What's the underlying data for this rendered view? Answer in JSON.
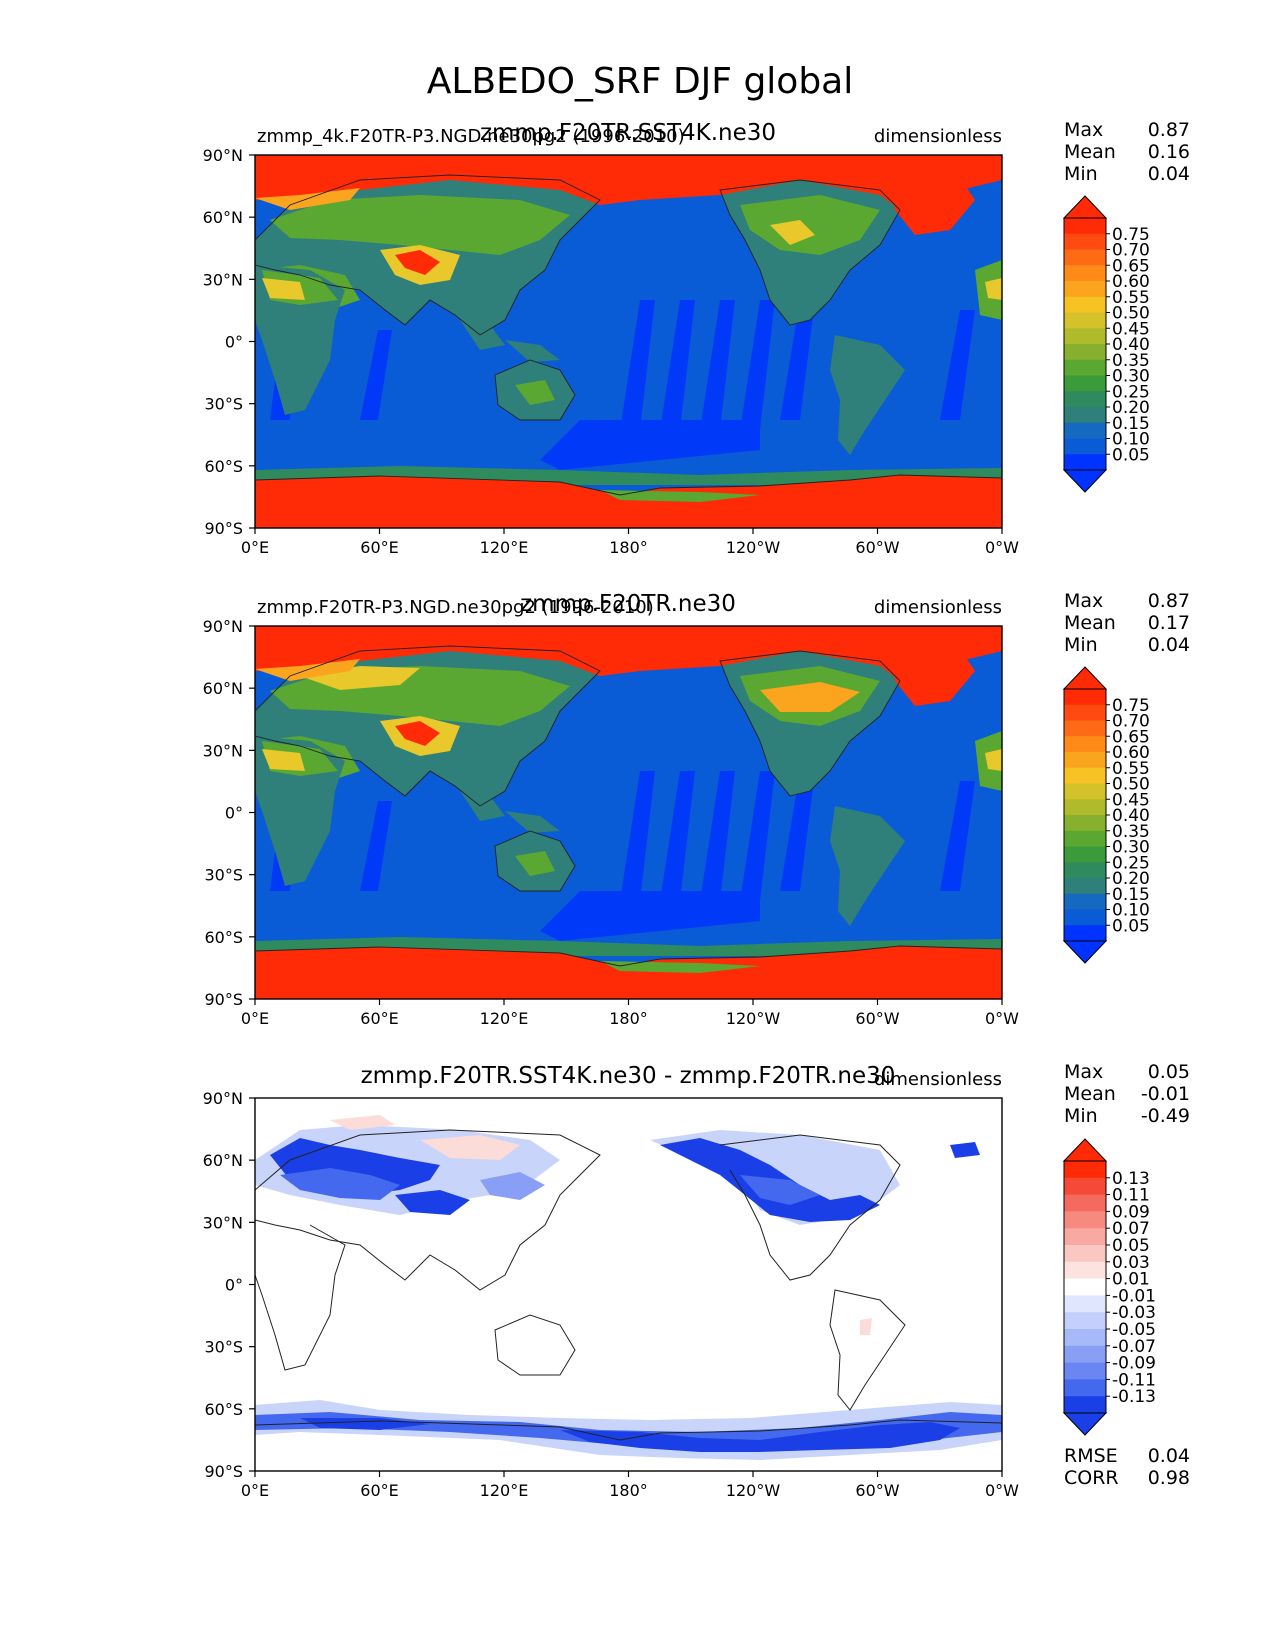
{
  "title": "ALBEDO_SRF DJF global",
  "colors": {
    "ocean": "#0a5cd6",
    "land_low": "#2f7f7a",
    "land_mid": "#5aa832",
    "land_high": "#e8c82a",
    "ice": "#ff2b06",
    "diff_neg": "#1b3fe6",
    "diff_neg_light": "#c8d4fa",
    "diff_pos_light": "#fbdcd8"
  },
  "panels": [
    {
      "id": "test",
      "left_title": "zmmp_4k.F20TR-P3.NGD.ne30pg2 (1996-2010)",
      "center_title": "zmmp.F20TR.SST4K.ne30",
      "right_title": "dimensionless",
      "stats": [
        {
          "label": "Max",
          "value": "0.87"
        },
        {
          "label": "Mean",
          "value": "0.16"
        },
        {
          "label": "Min",
          "value": "0.04"
        }
      ],
      "colorbar": {
        "levels": [
          "0.75",
          "0.70",
          "0.65",
          "0.60",
          "0.55",
          "0.50",
          "0.45",
          "0.40",
          "0.35",
          "0.30",
          "0.25",
          "0.20",
          "0.15",
          "0.10",
          "0.05"
        ],
        "colors": [
          "#ff2b06",
          "#ff4a10",
          "#ff6a14",
          "#ff8a18",
          "#fba51e",
          "#f6c224",
          "#d4c22a",
          "#b0bb2c",
          "#86b02e",
          "#5aa832",
          "#3b9a3a",
          "#2f8a5e",
          "#2f7f7a",
          "#1669c0",
          "#0a5cd6",
          "#0033ff"
        ]
      }
    },
    {
      "id": "ref",
      "left_title": "zmmp.F20TR-P3.NGD.ne30pg2 (1996-2010)",
      "center_title": "zmmp.F20TR.ne30",
      "right_title": "dimensionless",
      "stats": [
        {
          "label": "Max",
          "value": "0.87"
        },
        {
          "label": "Mean",
          "value": "0.17"
        },
        {
          "label": "Min",
          "value": "0.04"
        }
      ],
      "colorbar": {
        "levels": [
          "0.75",
          "0.70",
          "0.65",
          "0.60",
          "0.55",
          "0.50",
          "0.45",
          "0.40",
          "0.35",
          "0.30",
          "0.25",
          "0.20",
          "0.15",
          "0.10",
          "0.05"
        ],
        "colors": [
          "#ff2b06",
          "#ff4a10",
          "#ff6a14",
          "#ff8a18",
          "#fba51e",
          "#f6c224",
          "#d4c22a",
          "#b0bb2c",
          "#86b02e",
          "#5aa832",
          "#3b9a3a",
          "#2f8a5e",
          "#2f7f7a",
          "#1669c0",
          "#0a5cd6",
          "#0033ff"
        ]
      }
    },
    {
      "id": "diff",
      "left_title": "",
      "center_title": "zmmp.F20TR.SST4K.ne30 - zmmp.F20TR.ne30",
      "right_title": "dimensionless",
      "stats": [
        {
          "label": "Max",
          "value": "0.05"
        },
        {
          "label": "Mean",
          "value": "-0.01"
        },
        {
          "label": "Min",
          "value": "-0.49"
        }
      ],
      "extra_stats": [
        {
          "label": "RMSE",
          "value": "0.04"
        },
        {
          "label": "CORR",
          "value": "0.98"
        }
      ],
      "colorbar": {
        "levels": [
          "0.13",
          "0.11",
          "0.09",
          "0.07",
          "0.05",
          "0.03",
          "0.01",
          "-0.01",
          "-0.03",
          "-0.05",
          "-0.07",
          "-0.09",
          "-0.11",
          "-0.13"
        ],
        "colors": [
          "#ff2b06",
          "#f44a36",
          "#f46a5e",
          "#f68a80",
          "#f8aaa2",
          "#fac8c2",
          "#fce3e0",
          "#ffffff",
          "#dfe6fd",
          "#c4d0fb",
          "#a7b9f8",
          "#889ff5",
          "#6a86f2",
          "#4469ef",
          "#1b3fe6"
        ]
      }
    }
  ],
  "lat_ticks": [
    "90°N",
    "60°N",
    "30°N",
    "0°",
    "30°S",
    "60°S",
    "90°S"
  ],
  "lon_ticks": [
    "0°E",
    "60°E",
    "120°E",
    "180°",
    "120°W",
    "60°W",
    "0°W"
  ]
}
